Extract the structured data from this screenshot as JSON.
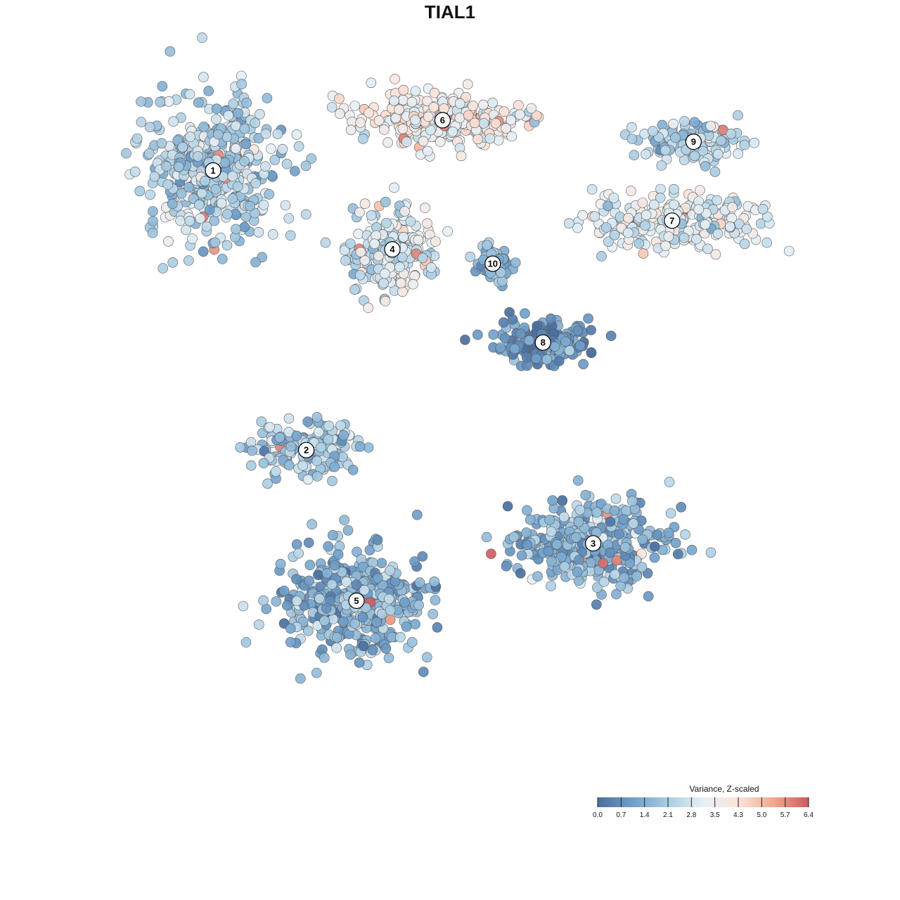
{
  "chart_data": {
    "type": "scatter",
    "title": "TIAL1",
    "xlabel": "",
    "ylabel": "",
    "grid": false,
    "axes_visible": false,
    "color_scale": {
      "title": "Variance, Z-scaled",
      "min": 0.0,
      "max": 6.4,
      "ticks": [
        "0.0",
        "0.7",
        "1.4",
        "2.1",
        "2.8",
        "3.5",
        "4.3",
        "5.0",
        "5.7",
        "6.4"
      ],
      "palette": [
        "#4a6fa0",
        "#6e9fcb",
        "#a9cde3",
        "#e6f0f6",
        "#fbe3d8",
        "#f0a98e",
        "#cd5a60"
      ],
      "legend_position": "bottom-right"
    },
    "clusters": [
      {
        "label": "1",
        "x": 1.5,
        "y": 8.8,
        "mean_z": 2.2
      },
      {
        "label": "2",
        "x": 2.8,
        "y": 4.9,
        "mean_z": 2.0
      },
      {
        "label": "3",
        "x": 6.8,
        "y": 3.6,
        "mean_z": 1.5
      },
      {
        "label": "4",
        "x": 4.0,
        "y": 7.7,
        "mean_z": 3.0
      },
      {
        "label": "5",
        "x": 3.5,
        "y": 2.8,
        "mean_z": 1.4
      },
      {
        "label": "6",
        "x": 4.7,
        "y": 9.5,
        "mean_z": 3.6
      },
      {
        "label": "7",
        "x": 7.9,
        "y": 8.1,
        "mean_z": 3.1
      },
      {
        "label": "8",
        "x": 6.1,
        "y": 6.4,
        "mean_z": 0.8
      },
      {
        "label": "9",
        "x": 8.2,
        "y": 9.2,
        "mean_z": 2.3
      },
      {
        "label": "10",
        "x": 5.4,
        "y": 7.5,
        "mean_z": 1.6
      }
    ]
  }
}
